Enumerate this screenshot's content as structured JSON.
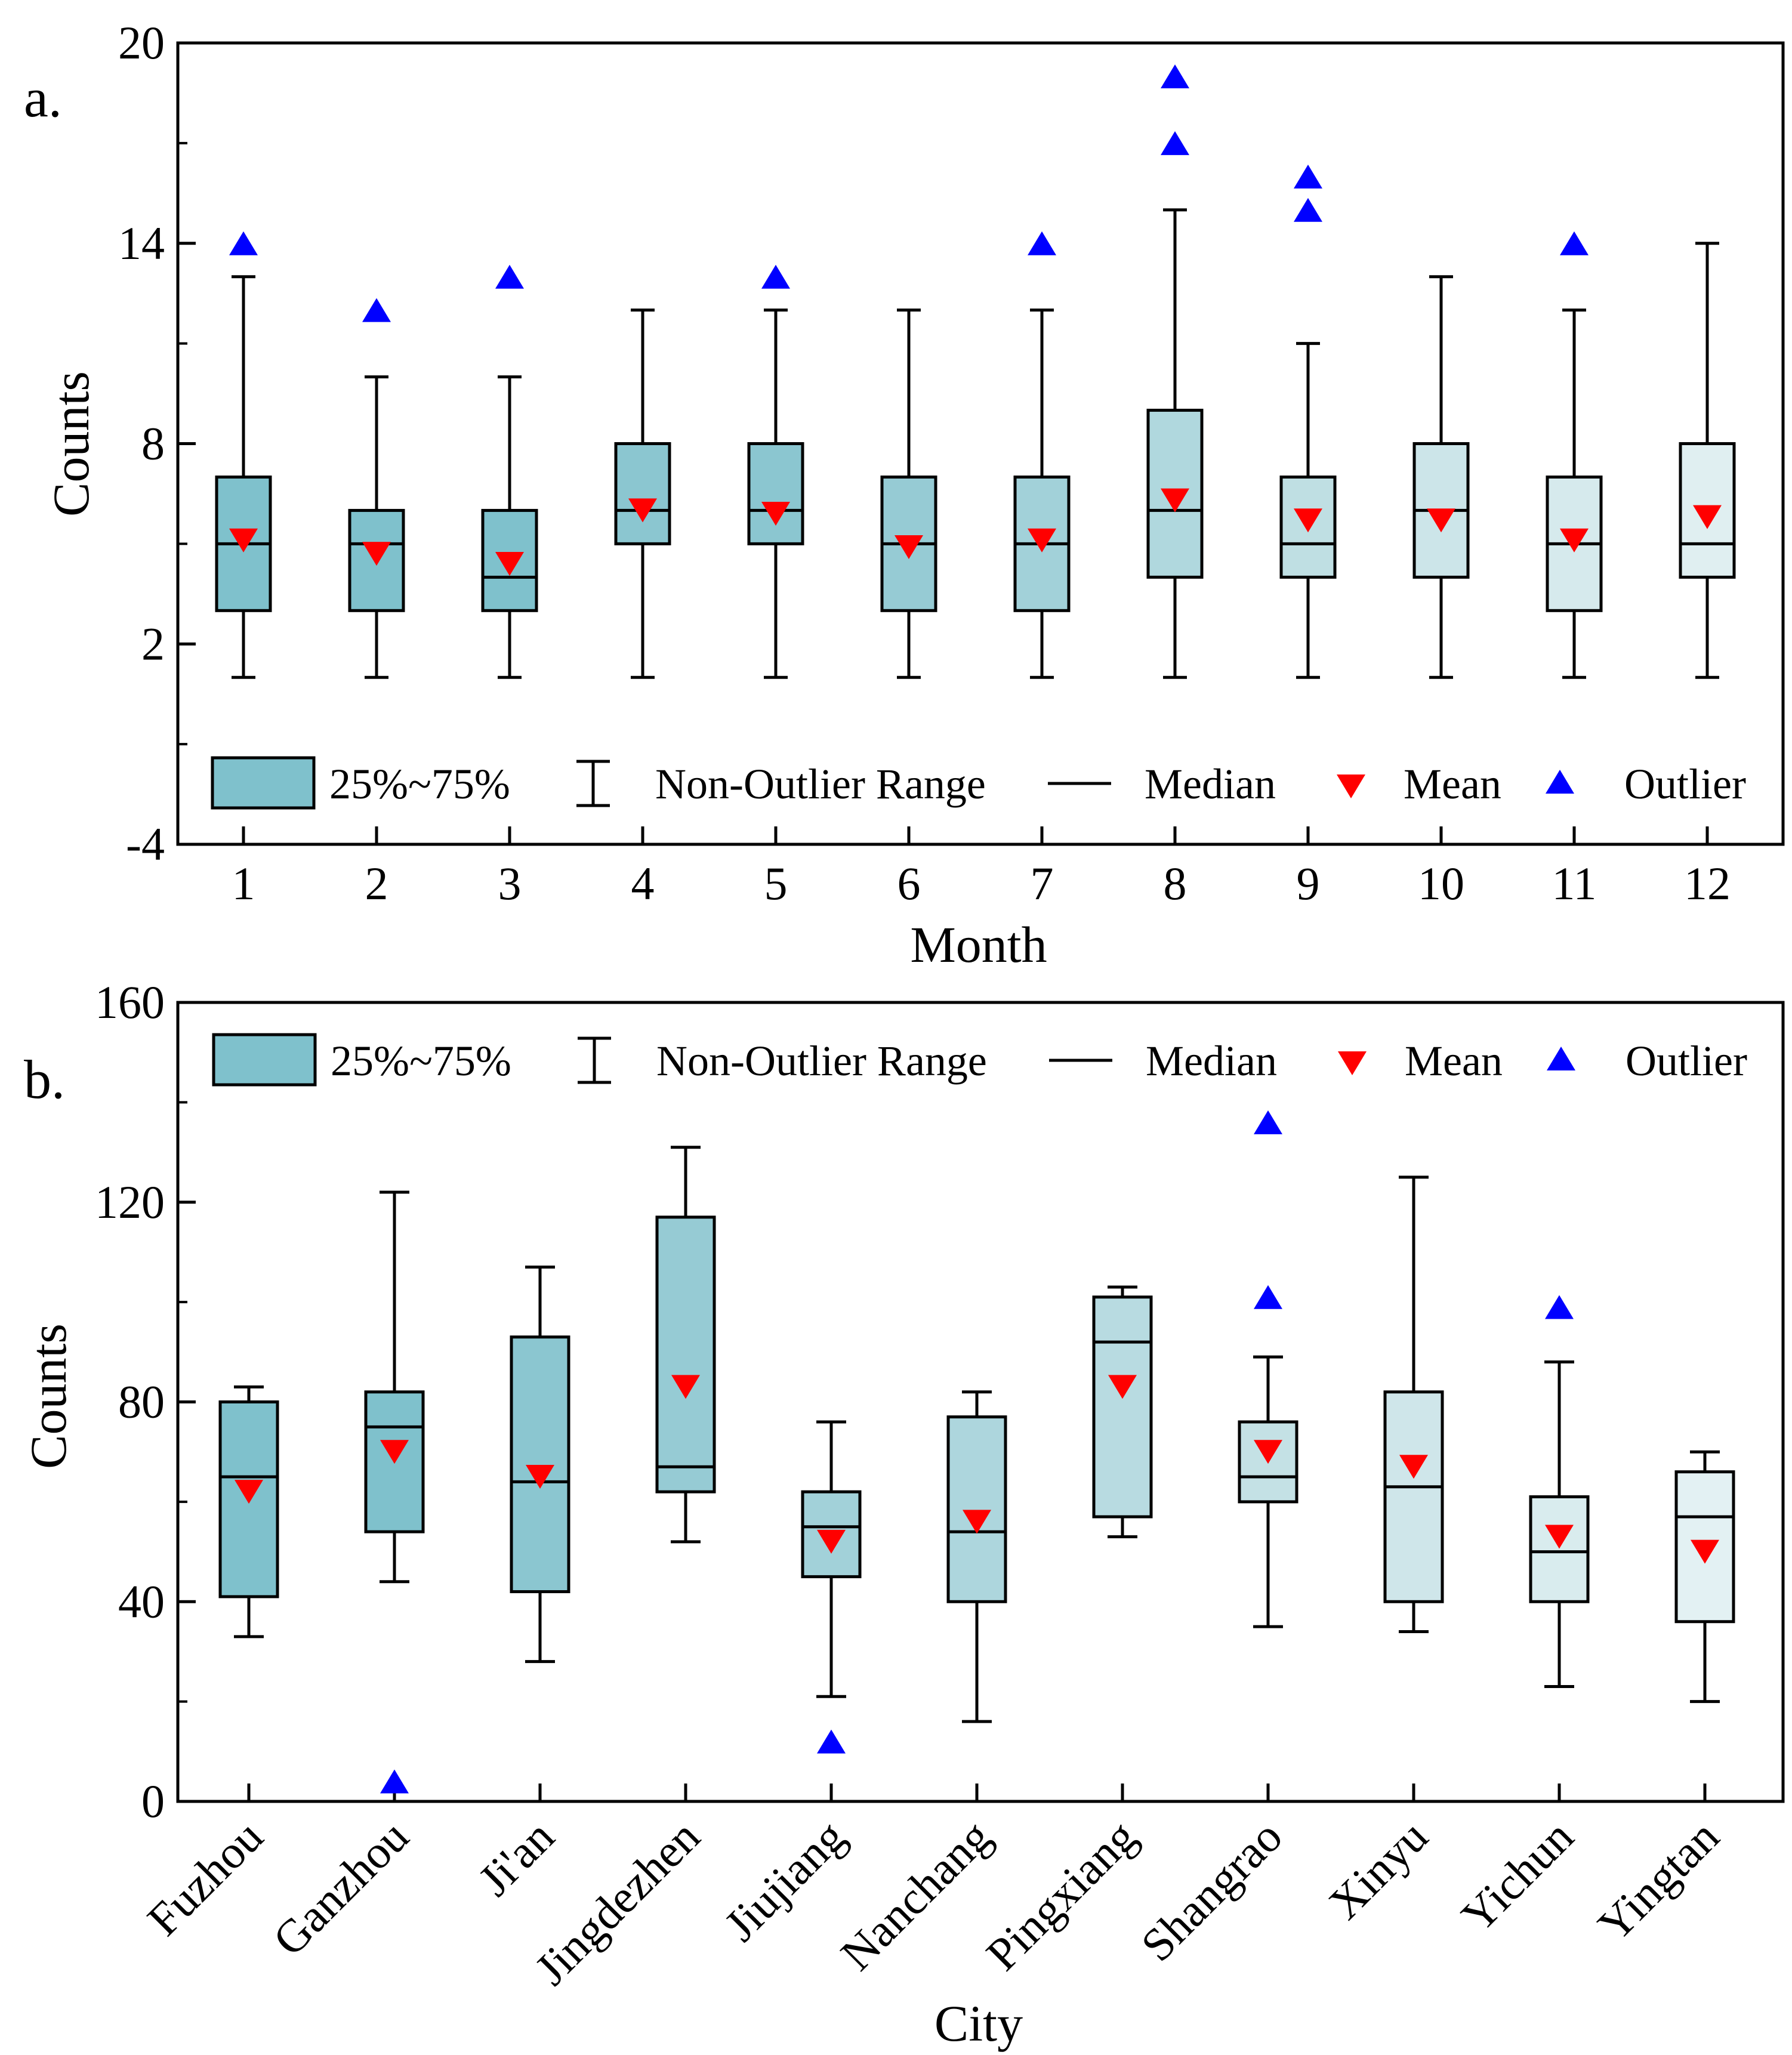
{
  "chart_data": [
    {
      "type": "box",
      "panel_label": "a.",
      "xlabel": "Month",
      "ylabel": "Counts",
      "ylim": [
        -4,
        20
      ],
      "yticks": [
        -4,
        2,
        8,
        14,
        20
      ],
      "categories": [
        "1",
        "2",
        "3",
        "4",
        "5",
        "6",
        "7",
        "8",
        "9",
        "10",
        "11",
        "12"
      ],
      "boxes": [
        {
          "q1": 3,
          "median": 5,
          "q3": 7,
          "whisker_low": 1,
          "whisker_high": 13,
          "mean": 5.1,
          "outliers": [
            14
          ],
          "fill": "#7fc1cc"
        },
        {
          "q1": 3,
          "median": 5,
          "q3": 6,
          "whisker_low": 1,
          "whisker_high": 10,
          "mean": 4.7,
          "outliers": [
            12
          ],
          "fill": "#7fc1cc"
        },
        {
          "q1": 3,
          "median": 4,
          "q3": 6,
          "whisker_low": 1,
          "whisker_high": 10,
          "mean": 4.4,
          "outliers": [
            13
          ],
          "fill": "#7fc1cc"
        },
        {
          "q1": 5,
          "median": 6,
          "q3": 8,
          "whisker_low": 1,
          "whisker_high": 12,
          "mean": 6.0,
          "outliers": [],
          "fill": "#8bc6d0"
        },
        {
          "q1": 5,
          "median": 6,
          "q3": 8,
          "whisker_low": 1,
          "whisker_high": 12,
          "mean": 5.9,
          "outliers": [
            13
          ],
          "fill": "#8bc6d0"
        },
        {
          "q1": 3,
          "median": 5,
          "q3": 7,
          "whisker_low": 1,
          "whisker_high": 12,
          "mean": 4.9,
          "outliers": [],
          "fill": "#96cbd4"
        },
        {
          "q1": 3,
          "median": 5,
          "q3": 7,
          "whisker_low": 1,
          "whisker_high": 12,
          "mean": 5.1,
          "outliers": [
            14
          ],
          "fill": "#a2d1d9"
        },
        {
          "q1": 4,
          "median": 6,
          "q3": 9,
          "whisker_low": 1,
          "whisker_high": 15,
          "mean": 6.3,
          "outliers": [
            17,
            19
          ],
          "fill": "#b0d8de"
        },
        {
          "q1": 4,
          "median": 5,
          "q3": 7,
          "whisker_low": 1,
          "whisker_high": 11,
          "mean": 5.7,
          "outliers": [
            15,
            16
          ],
          "fill": "#bfdfe3"
        },
        {
          "q1": 4,
          "median": 6,
          "q3": 8,
          "whisker_low": 1,
          "whisker_high": 13,
          "mean": 5.7,
          "outliers": [],
          "fill": "#cce5e9"
        },
        {
          "q1": 3,
          "median": 5,
          "q3": 7,
          "whisker_low": 1,
          "whisker_high": 12,
          "mean": 5.1,
          "outliers": [
            14
          ],
          "fill": "#d6eaed"
        },
        {
          "q1": 4,
          "median": 5,
          "q3": 8,
          "whisker_low": 1,
          "whisker_high": 14,
          "mean": 5.8,
          "outliers": [],
          "fill": "#e0eff1"
        }
      ],
      "legend": {
        "position": "bottom",
        "items": [
          "25%~75%",
          "Non-Outlier Range",
          "Median",
          "Mean",
          "Outlier"
        ]
      }
    },
    {
      "type": "box",
      "panel_label": "b.",
      "xlabel": "City",
      "ylabel": "Counts",
      "ylim": [
        0,
        160
      ],
      "yticks": [
        0,
        40,
        80,
        120,
        160
      ],
      "categories": [
        "Fuzhou",
        "Ganzhou",
        "Ji'an",
        "Jingdezhen",
        "Jiujiang",
        "Nanchang",
        "Pingxiang",
        "Shangrao",
        "Xinyu",
        "Yichun",
        "Yingtan"
      ],
      "boxes": [
        {
          "q1": 41,
          "median": 65,
          "q3": 80,
          "whisker_low": 33,
          "whisker_high": 83,
          "mean": 62,
          "outliers": [],
          "fill": "#7fc1cc"
        },
        {
          "q1": 54,
          "median": 75,
          "q3": 82,
          "whisker_low": 44,
          "whisker_high": 122,
          "mean": 70,
          "outliers": [
            4
          ],
          "fill": "#7fc1cc"
        },
        {
          "q1": 42,
          "median": 64,
          "q3": 93,
          "whisker_low": 28,
          "whisker_high": 107,
          "mean": 65,
          "outliers": [],
          "fill": "#8bc6d0"
        },
        {
          "q1": 62,
          "median": 67,
          "q3": 117,
          "whisker_low": 52,
          "whisker_high": 131,
          "mean": 83,
          "outliers": [],
          "fill": "#96cbd4"
        },
        {
          "q1": 45,
          "median": 55,
          "q3": 62,
          "whisker_low": 21,
          "whisker_high": 76,
          "mean": 52,
          "outliers": [
            12
          ],
          "fill": "#a2d1d9"
        },
        {
          "q1": 40,
          "median": 54,
          "q3": 77,
          "whisker_low": 16,
          "whisker_high": 82,
          "mean": 56,
          "outliers": [],
          "fill": "#add6dd"
        },
        {
          "q1": 57,
          "median": 92,
          "q3": 101,
          "whisker_low": 53,
          "whisker_high": 103,
          "mean": 83,
          "outliers": [],
          "fill": "#b8dbe1"
        },
        {
          "q1": 60,
          "median": 65,
          "q3": 76,
          "whisker_low": 35,
          "whisker_high": 89,
          "mean": 70,
          "outliers": [
            101,
            136
          ],
          "fill": "#c4e1e5"
        },
        {
          "q1": 40,
          "median": 63,
          "q3": 82,
          "whisker_low": 34,
          "whisker_high": 125,
          "mean": 67,
          "outliers": [],
          "fill": "#cfe6ea"
        },
        {
          "q1": 40,
          "median": 50,
          "q3": 61,
          "whisker_low": 23,
          "whisker_high": 88,
          "mean": 53,
          "outliers": [
            99
          ],
          "fill": "#d9ecee"
        },
        {
          "q1": 36,
          "median": 57,
          "q3": 66,
          "whisker_low": 20,
          "whisker_high": 70,
          "mean": 50,
          "outliers": [],
          "fill": "#e3f1f3"
        }
      ],
      "legend": {
        "position": "top",
        "items": [
          "25%~75%",
          "Non-Outlier Range",
          "Median",
          "Mean",
          "Outlier"
        ]
      }
    }
  ],
  "colors": {
    "legend_box_fill": "#7fc1cc",
    "mean_marker": "#ff0000",
    "outlier_marker": "#0000ff",
    "axis": "#000000"
  }
}
